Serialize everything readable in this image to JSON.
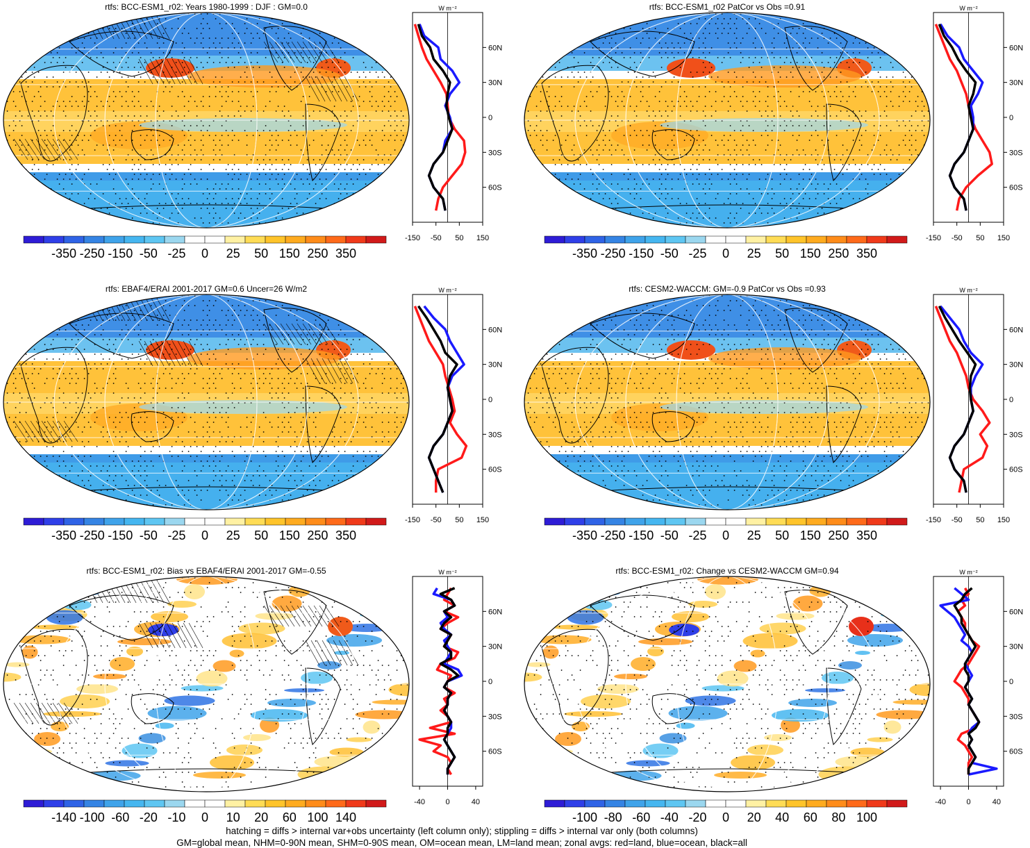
{
  "figure": {
    "footer_lines": [
      "hatching = diffs > internal var+obs uncertainty (left column only); stippling = diffs > internal var only (both columns)",
      "GM=global mean, NHM=0-90N mean, SHM=0-90S mean, OM=ocean mean, LM=land mean; zonal avgs: red=land, blue=ocean, black=all"
    ],
    "zonal_unit_label": "W m⁻²",
    "lat_ticks": [
      "60N",
      "30N",
      "0",
      "30S",
      "60S"
    ],
    "colors": {
      "land": "#ff1a1a",
      "ocean": "#1a1aff",
      "all": "#000000",
      "palette": [
        "#2e1cd6",
        "#2f3fe8",
        "#2f63e6",
        "#3584e4",
        "#3fa3ea",
        "#45b6f0",
        "#5ec6f2",
        "#9bd7ef",
        "#ffffff",
        "#ffffff",
        "#fff1a3",
        "#ffdc55",
        "#ffc42a",
        "#ffab1f",
        "#ff8c1a",
        "#ff6a1a",
        "#f03a1a",
        "#d11a1a"
      ]
    }
  },
  "panels": [
    {
      "id": "p1",
      "title": "rtfs: BCC-ESM1_r02: Years 1980-1999 : DJF : GM=0.0",
      "cbar_labels": [
        "-350",
        "-250",
        "-150",
        "-50",
        "-25",
        "0",
        "25",
        "50",
        "150",
        "250",
        "350"
      ],
      "zonal_ticks": [
        "-150",
        "-50",
        "50",
        "150"
      ]
    },
    {
      "id": "p2",
      "title": "rtfs: BCC-ESM1_r02 PatCor vs Obs =0.91",
      "cbar_labels": [
        "-350",
        "-250",
        "-150",
        "-50",
        "-25",
        "0",
        "25",
        "50",
        "150",
        "250",
        "350"
      ],
      "zonal_ticks": [
        "-150",
        "-50",
        "50",
        "150"
      ]
    },
    {
      "id": "p3",
      "title": "rtfs: EBAF4/ERAI 2001-2017 GM=0.6 Uncer=26 W/m2",
      "cbar_labels": [
        "-350",
        "-250",
        "-150",
        "-50",
        "-25",
        "0",
        "25",
        "50",
        "150",
        "250",
        "350"
      ],
      "zonal_ticks": [
        "-150",
        "-50",
        "50",
        "150"
      ]
    },
    {
      "id": "p4",
      "title": "rtfs: CESM2-WACCM: GM=-0.9 PatCor vs Obs =0.93",
      "cbar_labels": [
        "-350",
        "-250",
        "-150",
        "-50",
        "-25",
        "0",
        "25",
        "50",
        "150",
        "250",
        "350"
      ],
      "zonal_ticks": [
        "-150",
        "-50",
        "50",
        "150"
      ]
    },
    {
      "id": "p5",
      "title": "rtfs: BCC-ESM1_r02: Bias vs EBAF4/ERAI 2001-2017 GM=-0.55",
      "cbar_labels": [
        "-140",
        "-100",
        "-60",
        "-20",
        "-10",
        "0",
        "10",
        "20",
        "60",
        "100",
        "140"
      ],
      "zonal_ticks": [
        "-40",
        "0",
        "40"
      ]
    },
    {
      "id": "p6",
      "title": "rtfs: BCC-ESM1_r02: Change vs CESM2-WACCM GM=0.94",
      "cbar_labels": [
        "-100",
        "-80",
        "-60",
        "-40",
        "-20",
        "0",
        "20",
        "40",
        "60",
        "80",
        "100"
      ],
      "zonal_ticks": [
        "-40",
        "0",
        "40"
      ]
    }
  ],
  "chart_data": [
    {
      "type": "line",
      "panel": "p1",
      "ylabel": "",
      "xlabel": "",
      "xlim": [
        -150,
        150
      ],
      "ylim": [
        -90,
        90
      ],
      "y": [
        80,
        70,
        60,
        50,
        40,
        30,
        20,
        10,
        0,
        -10,
        -20,
        -30,
        -40,
        -50,
        -60,
        -70,
        -80
      ],
      "series": [
        {
          "name": "red=land",
          "x": [
            -140,
            -125,
            -110,
            -90,
            -60,
            -30,
            -5,
            0,
            5,
            30,
            70,
            75,
            60,
            20,
            -20,
            -40,
            -50
          ]
        },
        {
          "name": "blue=ocean",
          "x": [
            -120,
            -100,
            -40,
            -30,
            20,
            50,
            10,
            -10,
            10,
            20,
            -10,
            -20,
            -60,
            -80,
            -60,
            -20,
            -10
          ]
        },
        {
          "name": "black=all",
          "x": [
            -125,
            -110,
            -75,
            -60,
            -20,
            10,
            0,
            -5,
            5,
            20,
            0,
            -20,
            -60,
            -80,
            -60,
            -20,
            -10
          ]
        }
      ]
    },
    {
      "type": "line",
      "panel": "p2",
      "ylabel": "",
      "xlabel": "",
      "xlim": [
        -150,
        150
      ],
      "ylim": [
        -90,
        90
      ],
      "y": [
        80,
        70,
        60,
        50,
        40,
        30,
        20,
        10,
        0,
        -10,
        -20,
        -30,
        -40,
        -50,
        -60,
        -70,
        -80
      ],
      "series": [
        {
          "name": "red=land",
          "x": [
            -140,
            -120,
            -100,
            -80,
            -50,
            -30,
            -10,
            0,
            10,
            30,
            60,
            90,
            100,
            40,
            -10,
            -40,
            -50
          ]
        },
        {
          "name": "blue=ocean",
          "x": [
            -120,
            -90,
            -40,
            -20,
            20,
            60,
            40,
            10,
            20,
            20,
            0,
            -20,
            -60,
            -80,
            -60,
            -20,
            -10
          ]
        },
        {
          "name": "black=all",
          "x": [
            -125,
            -105,
            -70,
            -45,
            -10,
            30,
            20,
            0,
            10,
            20,
            0,
            -20,
            -60,
            -80,
            -60,
            -20,
            -10
          ]
        }
      ]
    },
    {
      "type": "line",
      "panel": "p3",
      "ylabel": "",
      "xlabel": "",
      "xlim": [
        -150,
        150
      ],
      "ylim": [
        -90,
        90
      ],
      "y": [
        80,
        70,
        60,
        50,
        40,
        30,
        20,
        10,
        0,
        -10,
        -20,
        -30,
        -40,
        -50,
        -60,
        -70,
        -80
      ],
      "series": [
        {
          "name": "red=land",
          "x": [
            -140,
            -120,
            -100,
            -80,
            -50,
            -20,
            -10,
            5,
            20,
            30,
            10,
            40,
            80,
            60,
            -40,
            -50,
            -50
          ]
        },
        {
          "name": "blue=ocean",
          "x": [
            -100,
            -60,
            -10,
            10,
            40,
            70,
            20,
            0,
            10,
            20,
            0,
            -20,
            -60,
            -80,
            -60,
            -40,
            -20
          ]
        },
        {
          "name": "black=all",
          "x": [
            -125,
            -90,
            -60,
            -30,
            -10,
            40,
            10,
            0,
            10,
            20,
            0,
            -20,
            -60,
            -80,
            -60,
            -40,
            -20
          ]
        }
      ]
    },
    {
      "type": "line",
      "panel": "p4",
      "ylabel": "",
      "xlabel": "",
      "xlim": [
        -150,
        150
      ],
      "ylim": [
        -90,
        90
      ],
      "y": [
        80,
        70,
        60,
        50,
        40,
        30,
        20,
        10,
        0,
        -10,
        -20,
        -30,
        -40,
        -50,
        -60,
        -70,
        -80
      ],
      "series": [
        {
          "name": "red=land",
          "x": [
            -140,
            -120,
            -100,
            -80,
            -50,
            -30,
            -10,
            0,
            20,
            60,
            90,
            50,
            80,
            60,
            -20,
            -30,
            -40
          ]
        },
        {
          "name": "blue=ocean",
          "x": [
            -120,
            -80,
            -40,
            -20,
            10,
            60,
            30,
            10,
            10,
            20,
            0,
            -20,
            -60,
            -80,
            -60,
            -20,
            -10
          ]
        },
        {
          "name": "black=all",
          "x": [
            -125,
            -100,
            -70,
            -40,
            -5,
            30,
            10,
            5,
            10,
            20,
            0,
            -20,
            -60,
            -80,
            -60,
            -20,
            -10
          ]
        }
      ]
    },
    {
      "type": "line",
      "panel": "p5",
      "ylabel": "",
      "xlabel": "",
      "xlim": [
        -50,
        50
      ],
      "ylim": [
        -90,
        90
      ],
      "y": [
        80,
        75,
        70,
        65,
        60,
        55,
        50,
        45,
        40,
        35,
        30,
        25,
        20,
        15,
        10,
        5,
        0,
        -5,
        -10,
        -15,
        -20,
        -25,
        -30,
        -35,
        -40,
        -45,
        -50,
        -55,
        -60,
        -65,
        -70,
        -75,
        -80
      ],
      "series": [
        {
          "name": "red=land",
          "x": [
            5,
            0,
            -5,
            10,
            -5,
            15,
            0,
            -10,
            5,
            0,
            -5,
            15,
            10,
            -10,
            -15,
            5,
            0,
            -5,
            10,
            -5,
            0,
            -10,
            0,
            5,
            -25,
            10,
            -40,
            -10,
            -20,
            0,
            5,
            0,
            5
          ]
        },
        {
          "name": "blue=ocean",
          "x": [
            -15,
            -20,
            5,
            10,
            -5,
            0,
            -10,
            -5,
            5,
            -5,
            0,
            5,
            0,
            -5,
            15,
            20,
            0,
            -5,
            5,
            0,
            0,
            -5,
            0,
            5,
            5,
            0,
            -5,
            0,
            5,
            10,
            5,
            0,
            0
          ]
        },
        {
          "name": "black=all",
          "x": [
            10,
            -10,
            5,
            10,
            -5,
            5,
            -5,
            -10,
            5,
            0,
            -5,
            5,
            5,
            -10,
            5,
            15,
            0,
            -5,
            5,
            0,
            0,
            -5,
            0,
            5,
            0,
            0,
            -5,
            0,
            5,
            10,
            5,
            0,
            0
          ]
        }
      ]
    },
    {
      "type": "line",
      "panel": "p6",
      "ylabel": "",
      "xlabel": "",
      "xlim": [
        -50,
        50
      ],
      "ylim": [
        -90,
        90
      ],
      "y": [
        80,
        75,
        70,
        65,
        60,
        55,
        50,
        45,
        40,
        35,
        30,
        25,
        20,
        15,
        10,
        5,
        0,
        -5,
        -10,
        -15,
        -20,
        -25,
        -30,
        -35,
        -40,
        -45,
        -50,
        -55,
        -60,
        -65,
        -70,
        -75,
        -80
      ],
      "series": [
        {
          "name": "red=land",
          "x": [
            -5,
            0,
            -10,
            -5,
            -15,
            -10,
            -5,
            -5,
            0,
            5,
            15,
            10,
            5,
            0,
            -10,
            -15,
            -20,
            -10,
            -5,
            0,
            0,
            5,
            10,
            15,
            10,
            -10,
            -15,
            -5,
            0,
            5,
            0,
            0,
            0
          ]
        },
        {
          "name": "blue=ocean",
          "x": [
            -20,
            -10,
            0,
            -40,
            -30,
            -20,
            -15,
            -10,
            -5,
            -10,
            0,
            5,
            0,
            -5,
            0,
            5,
            0,
            -5,
            0,
            5,
            0,
            5,
            10,
            15,
            5,
            0,
            5,
            0,
            5,
            10,
            5,
            40,
            0
          ]
        },
        {
          "name": "black=all",
          "x": [
            5,
            -5,
            -10,
            -20,
            -15,
            -10,
            -10,
            -5,
            0,
            5,
            10,
            5,
            0,
            -5,
            -5,
            0,
            0,
            -5,
            0,
            5,
            0,
            5,
            10,
            15,
            10,
            0,
            5,
            0,
            5,
            10,
            5,
            0,
            0
          ]
        }
      ]
    }
  ]
}
